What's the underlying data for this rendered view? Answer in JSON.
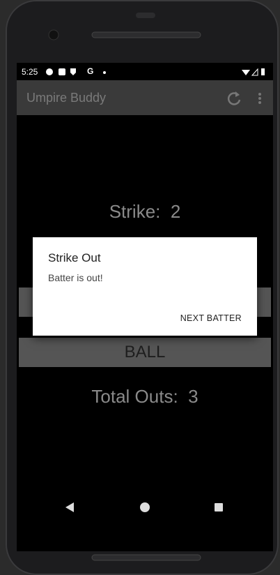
{
  "status_bar": {
    "time": "5:25",
    "g_icon": "G"
  },
  "app_bar": {
    "title": "Umpire Buddy"
  },
  "screen": {
    "strike_label": "Strike:",
    "strike_count": "2",
    "ball_button": "BALL",
    "outs_label": "Total Outs:",
    "outs_count": "3"
  },
  "dialog": {
    "title": "Strike Out",
    "message": "Batter is out!",
    "action": "NEXT BATTER"
  }
}
